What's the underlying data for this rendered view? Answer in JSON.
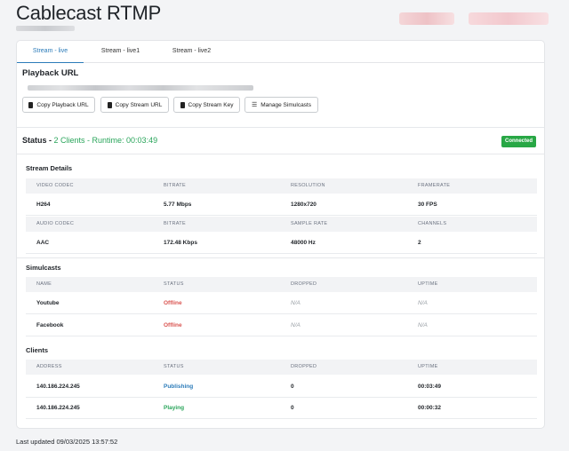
{
  "header": {
    "title": "Cablecast RTMP"
  },
  "tabs": [
    {
      "label": "Stream - live",
      "active": true
    },
    {
      "label": "Stream - live1",
      "active": false
    },
    {
      "label": "Stream - live2",
      "active": false
    }
  ],
  "playback": {
    "heading": "Playback URL",
    "buttons": {
      "copy_playback": "Copy Playback URL",
      "copy_stream": "Copy Stream URL",
      "copy_key": "Copy Stream Key",
      "manage": "Manage Simulcasts"
    }
  },
  "status": {
    "label": "Status - ",
    "summary": "2 Clients - Runtime: 00:03:49",
    "badge": "Connected"
  },
  "stream_details": {
    "heading": "Stream Details",
    "video_headers": [
      "VIDEO CODEC",
      "BITRATE",
      "RESOLUTION",
      "FRAMERATE"
    ],
    "video_values": [
      "H264",
      "5.77 Mbps",
      "1280x720",
      "30 FPS"
    ],
    "audio_headers": [
      "AUDIO CODEC",
      "BITRATE",
      "SAMPLE RATE",
      "CHANNELS"
    ],
    "audio_values": [
      "AAC",
      "172.48 Kbps",
      "48000 Hz",
      "2"
    ]
  },
  "simulcasts": {
    "heading": "Simulcasts",
    "headers": [
      "NAME",
      "STATUS",
      "DROPPED",
      "UPTIME"
    ],
    "rows": [
      [
        "Youtube",
        "Offline",
        "N/A",
        "N/A"
      ],
      [
        "Facebook",
        "Offline",
        "N/A",
        "N/A"
      ]
    ]
  },
  "clients": {
    "heading": "Clients",
    "headers": [
      "ADDRESS",
      "STATUS",
      "DROPPED",
      "UPTIME"
    ],
    "rows": [
      [
        "140.186.224.245",
        "Publishing",
        "0",
        "00:03:49"
      ],
      [
        "140.186.224.245",
        "Playing",
        "0",
        "00:00:32"
      ]
    ]
  },
  "footer": {
    "last_updated": "Last updated 09/03/2025 13:57:52"
  },
  "colors": {
    "accent": "#2b7bb9",
    "success": "#28a745",
    "danger": "#d9534f"
  }
}
